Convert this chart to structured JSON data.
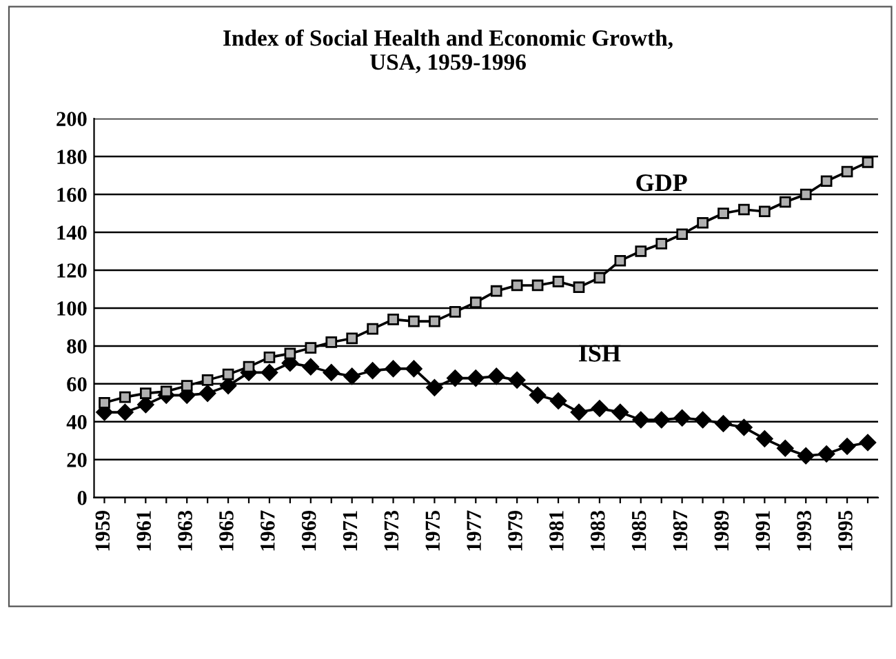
{
  "chart_data": {
    "type": "line",
    "title": "Index of Social Health and Economic Growth,\nUSA, 1959-1996",
    "categories": [
      "1959",
      null,
      "1961",
      null,
      "1963",
      null,
      "1965",
      null,
      "1967",
      null,
      "1969",
      null,
      "1971",
      null,
      "1973",
      null,
      "1975",
      null,
      "1977",
      null,
      "1979",
      null,
      "1981",
      null,
      "1983",
      null,
      "1985",
      null,
      "1987",
      null,
      "1989",
      null,
      "1991",
      null,
      "1993",
      null,
      "1995",
      null
    ],
    "series": [
      {
        "name": "GDP",
        "color": "#000000",
        "marker": "square",
        "values": [
          50,
          53,
          55,
          56,
          59,
          62,
          65,
          69,
          74,
          76,
          79,
          82,
          84,
          89,
          94,
          93,
          93,
          98,
          103,
          109,
          112,
          112,
          114,
          111,
          116,
          125,
          130,
          134,
          139,
          145,
          150,
          152,
          151,
          156,
          160,
          167,
          172,
          177
        ]
      },
      {
        "name": "ISH",
        "color": "#000000",
        "marker": "diamond",
        "values": [
          45,
          45,
          49,
          54,
          54,
          55,
          59,
          66,
          66,
          71,
          69,
          66,
          64,
          67,
          68,
          68,
          58,
          63,
          63,
          64,
          62,
          54,
          51,
          45,
          47,
          45,
          41,
          41,
          42,
          41,
          39,
          37,
          31,
          26,
          22,
          23,
          27,
          29
        ]
      }
    ],
    "ylim": [
      0,
      200
    ],
    "yticks": [
      0,
      20,
      40,
      60,
      80,
      100,
      120,
      140,
      160,
      180,
      200
    ],
    "grid": "y",
    "legend": false,
    "line_style": "solid"
  }
}
